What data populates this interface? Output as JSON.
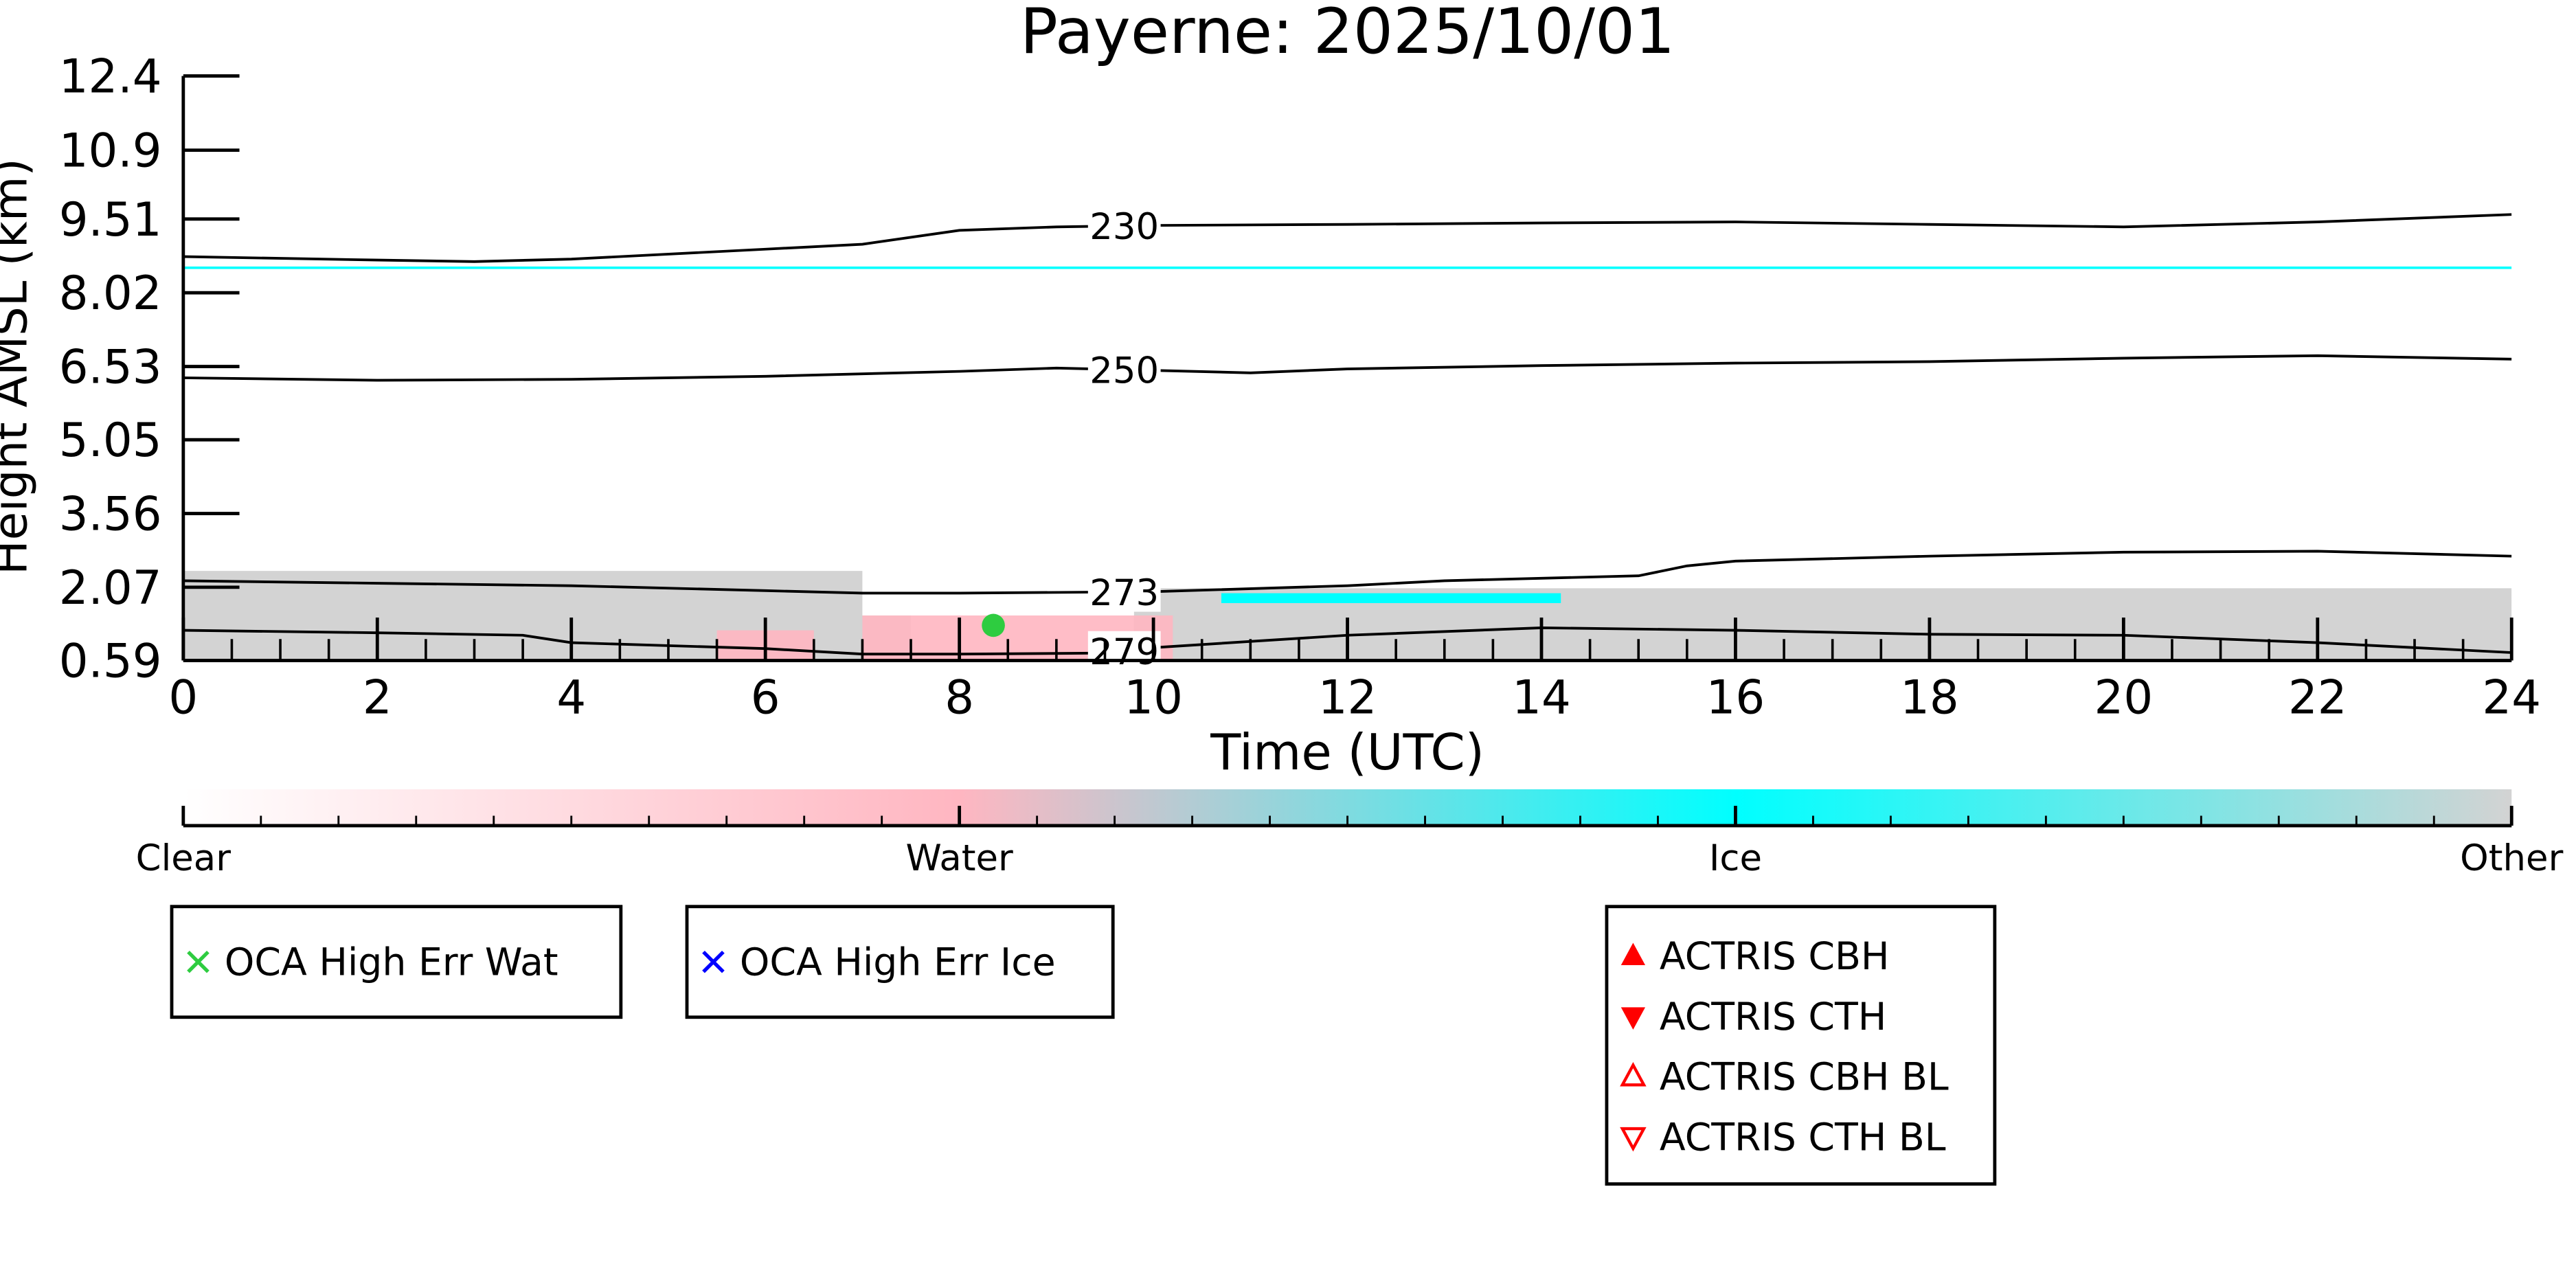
{
  "chart_data": {
    "type": "heatmap",
    "title": "Payerne: 2025/10/01",
    "xlabel": "Time (UTC)",
    "ylabel": "Height AMSL (km)",
    "xlim": [
      0,
      24
    ],
    "ylim": [
      0.59,
      12.4
    ],
    "x_ticks": [
      "0",
      "2",
      "4",
      "6",
      "8",
      "10",
      "12",
      "14",
      "16",
      "18",
      "20",
      "22",
      "24"
    ],
    "y_ticks": [
      "0.59",
      "2.07",
      "3.56",
      "5.05",
      "6.53",
      "8.02",
      "9.51",
      "10.9",
      "12.4"
    ],
    "grid": false,
    "colorbar": {
      "labels": [
        "Clear",
        "Water",
        "Ice",
        "Other"
      ],
      "colors": [
        "#ffffff",
        "#ffb6c1",
        "#00ffff",
        "#d3d3d3"
      ]
    },
    "isotherms": [
      {
        "label": "230",
        "points": [
          [
            0,
            8.75
          ],
          [
            2,
            8.68
          ],
          [
            3,
            8.65
          ],
          [
            4,
            8.7
          ],
          [
            6,
            8.9
          ],
          [
            7,
            9.0
          ],
          [
            8,
            9.28
          ],
          [
            9,
            9.35
          ],
          [
            10,
            9.38
          ],
          [
            12,
            9.4
          ],
          [
            14,
            9.43
          ],
          [
            16,
            9.45
          ],
          [
            18,
            9.4
          ],
          [
            20,
            9.35
          ],
          [
            22,
            9.45
          ],
          [
            24,
            9.6
          ]
        ]
      },
      {
        "label": "250",
        "points": [
          [
            0,
            6.3
          ],
          [
            2,
            6.25
          ],
          [
            4,
            6.27
          ],
          [
            6,
            6.33
          ],
          [
            8,
            6.43
          ],
          [
            9,
            6.5
          ],
          [
            10,
            6.45
          ],
          [
            11,
            6.4
          ],
          [
            12,
            6.48
          ],
          [
            14,
            6.55
          ],
          [
            16,
            6.6
          ],
          [
            18,
            6.63
          ],
          [
            20,
            6.7
          ],
          [
            22,
            6.75
          ],
          [
            24,
            6.68
          ]
        ]
      },
      {
        "label": "273",
        "points": [
          [
            0,
            2.2
          ],
          [
            2,
            2.15
          ],
          [
            4,
            2.1
          ],
          [
            6,
            2.0
          ],
          [
            7,
            1.95
          ],
          [
            8,
            1.95
          ],
          [
            10,
            1.98
          ],
          [
            12,
            2.1
          ],
          [
            13,
            2.2
          ],
          [
            14,
            2.25
          ],
          [
            15,
            2.3
          ],
          [
            15.5,
            2.5
          ],
          [
            16,
            2.6
          ],
          [
            18,
            2.7
          ],
          [
            20,
            2.78
          ],
          [
            22,
            2.8
          ],
          [
            24,
            2.7
          ]
        ]
      },
      {
        "label": "279",
        "points": [
          [
            0,
            1.2
          ],
          [
            2,
            1.15
          ],
          [
            3.5,
            1.1
          ],
          [
            4,
            0.95
          ],
          [
            6,
            0.83
          ],
          [
            7,
            0.72
          ],
          [
            8,
            0.72
          ],
          [
            9.5,
            0.74
          ],
          [
            10,
            0.85
          ],
          [
            12,
            1.1
          ],
          [
            14,
            1.25
          ],
          [
            16,
            1.2
          ],
          [
            18,
            1.12
          ],
          [
            20,
            1.1
          ],
          [
            22,
            0.95
          ],
          [
            23,
            0.85
          ],
          [
            24,
            0.75
          ]
        ]
      }
    ],
    "regions": [
      {
        "phase": "Other",
        "x": [
          0,
          7
        ],
        "y": [
          0.59,
          2.4
        ]
      },
      {
        "phase": "Other",
        "x": [
          6.9,
          7.5
        ],
        "y": [
          0.59,
          1.5
        ]
      },
      {
        "phase": "Other",
        "x": [
          9.8,
          24
        ],
        "y": [
          0.59,
          2.05
        ]
      },
      {
        "phase": "Water",
        "x": [
          5.5,
          6.5
        ],
        "y": [
          0.59,
          1.2
        ]
      },
      {
        "phase": "Water",
        "x": [
          7.0,
          10.2
        ],
        "y": [
          0.59,
          1.5
        ]
      },
      {
        "phase": "Ice",
        "x": [
          10.7,
          14.2
        ],
        "y": [
          1.75,
          1.95
        ]
      },
      {
        "phase": "Ice",
        "x": [
          0,
          24
        ],
        "y": [
          8.5,
          8.55
        ]
      }
    ],
    "markers": [
      {
        "series": "OCA High Err Wat",
        "x": 8.35,
        "y": 1.3
      }
    ],
    "legends": [
      {
        "entries": [
          {
            "symbol": "x",
            "color": "#2ecc40",
            "label": "OCA High Err Wat"
          }
        ]
      },
      {
        "entries": [
          {
            "symbol": "x",
            "color": "#0000ff",
            "label": "OCA High Err Ice"
          }
        ]
      },
      {
        "entries": [
          {
            "symbol": "triangle-up",
            "color": "#ff0000",
            "label": "ACTRIS CBH"
          },
          {
            "symbol": "triangle-down",
            "color": "#ff0000",
            "label": "ACTRIS CTH"
          },
          {
            "symbol": "triangle-up-open",
            "color": "#ff0000",
            "label": "ACTRIS CBH BL"
          },
          {
            "symbol": "triangle-down-open",
            "color": "#ff0000",
            "label": "ACTRIS CTH BL"
          }
        ]
      }
    ]
  }
}
